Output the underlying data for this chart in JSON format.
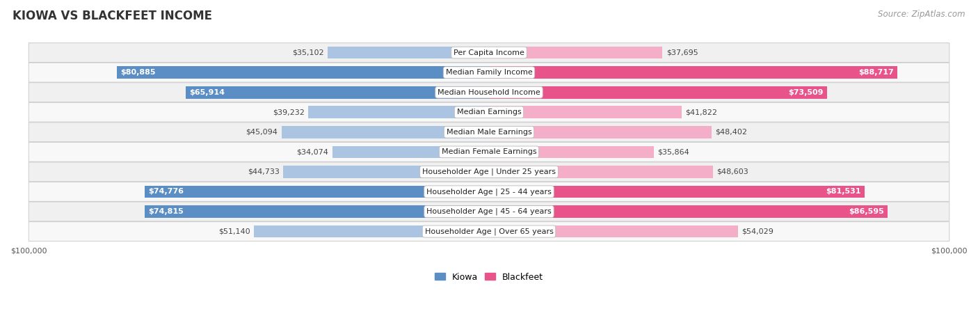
{
  "title": "KIOWA VS BLACKFEET INCOME",
  "source": "Source: ZipAtlas.com",
  "categories": [
    "Per Capita Income",
    "Median Family Income",
    "Median Household Income",
    "Median Earnings",
    "Median Male Earnings",
    "Median Female Earnings",
    "Householder Age | Under 25 years",
    "Householder Age | 25 - 44 years",
    "Householder Age | 45 - 64 years",
    "Householder Age | Over 65 years"
  ],
  "kiowa_values": [
    35102,
    80885,
    65914,
    39232,
    45094,
    34074,
    44733,
    74776,
    74815,
    51140
  ],
  "blackfeet_values": [
    37695,
    88717,
    73509,
    41822,
    48402,
    35864,
    48603,
    81531,
    86595,
    54029
  ],
  "kiowa_labels": [
    "$35,102",
    "$80,885",
    "$65,914",
    "$39,232",
    "$45,094",
    "$34,074",
    "$44,733",
    "$74,776",
    "$74,815",
    "$51,140"
  ],
  "blackfeet_labels": [
    "$37,695",
    "$88,717",
    "$73,509",
    "$41,822",
    "$48,402",
    "$35,864",
    "$48,603",
    "$81,531",
    "$86,595",
    "$54,029"
  ],
  "max_value": 100000,
  "kiowa_color_light": "#aac4e2",
  "kiowa_color_dark": "#5b8ec4",
  "blackfeet_color_light": "#f5aec8",
  "blackfeet_color_dark": "#e8548a",
  "label_color_white": "#ffffff",
  "label_color_dark": "#444444",
  "row_bg_odd": "#f0f0f0",
  "row_bg_even": "#f8f8f8",
  "row_border_color": "#cccccc",
  "background_color": "#ffffff",
  "dark_threshold": 60000,
  "title_fontsize": 12,
  "source_fontsize": 8.5,
  "label_fontsize": 8,
  "category_fontsize": 8,
  "legend_fontsize": 9,
  "axis_label_fontsize": 8,
  "bar_height": 0.62
}
